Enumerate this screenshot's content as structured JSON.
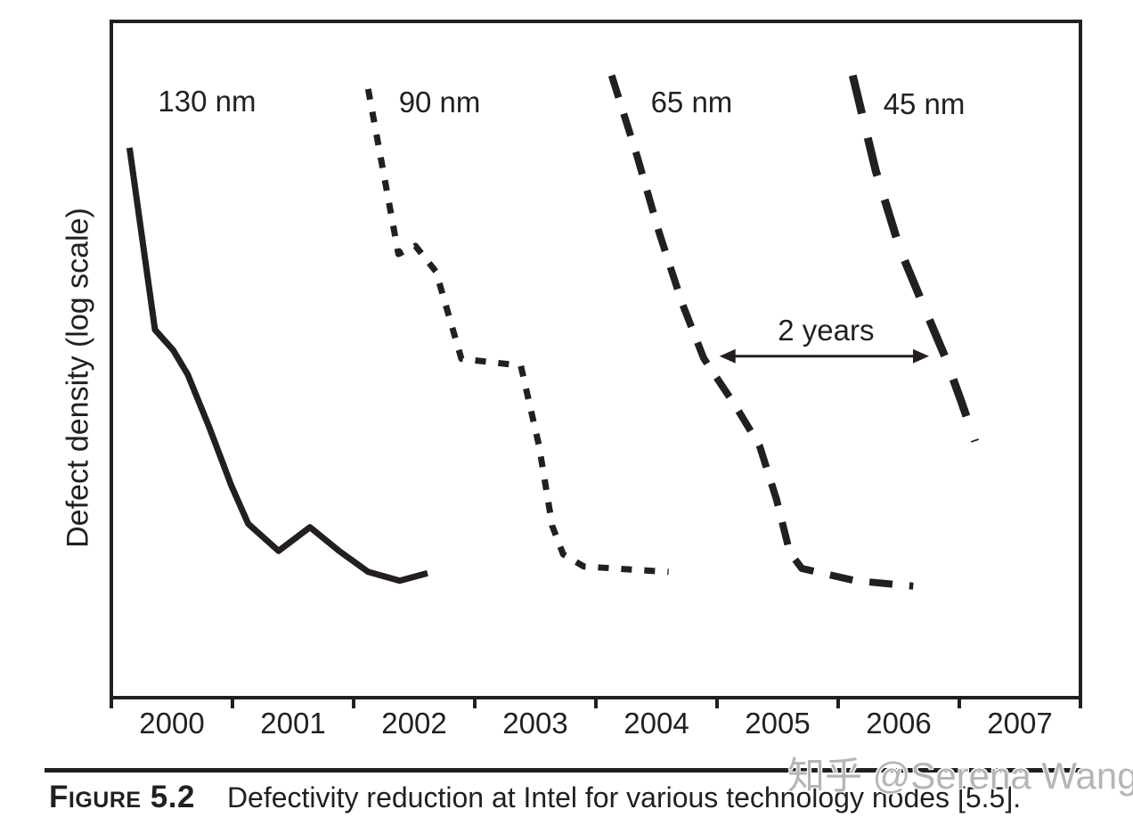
{
  "figure": {
    "caption_label": "Figure 5.2",
    "caption_text": "Defectivity reduction at Intel for various technology nodes [5.5].",
    "watermark": "知乎 @Serena Wang"
  },
  "ink_color": "#231f20",
  "watermark_color": "#b5b5b5",
  "chart_data": {
    "type": "line",
    "title": "",
    "xlabel": "",
    "ylabel": "Defect density (log scale)",
    "x_range": [
      1999.5,
      2007.5
    ],
    "x_tick_labels": [
      "2000",
      "2001",
      "2002",
      "2003",
      "2004",
      "2005",
      "2006",
      "2007"
    ],
    "y_axis_note": "log scale, unlabeled; 'level' = fraction of plot height above the x-axis",
    "grid": false,
    "legend": "inline labels next to each curve",
    "series": [
      {
        "name": "130 nm",
        "line_style": "solid",
        "line_width": 7,
        "label_pos": [
          2000.29,
          0.881
        ],
        "points": [
          [
            1999.65,
            0.813
          ],
          [
            1999.86,
            0.544
          ],
          [
            2000.01,
            0.514
          ],
          [
            2000.13,
            0.478
          ],
          [
            2000.31,
            0.399
          ],
          [
            2000.49,
            0.314
          ],
          [
            2000.63,
            0.257
          ],
          [
            2000.88,
            0.217
          ],
          [
            2001.14,
            0.252
          ],
          [
            2001.38,
            0.217
          ],
          [
            2001.62,
            0.186
          ],
          [
            2001.88,
            0.173
          ],
          [
            2002.11,
            0.184
          ]
        ]
      },
      {
        "name": "90 nm",
        "line_style": "dotted",
        "line_width": 7,
        "label_pos": [
          2002.21,
          0.88
        ],
        "points": [
          [
            2001.62,
            0.9
          ],
          [
            2001.87,
            0.656
          ],
          [
            2002.01,
            0.668
          ],
          [
            2002.18,
            0.63
          ],
          [
            2002.39,
            0.501
          ],
          [
            2002.88,
            0.491
          ],
          [
            2003.03,
            0.373
          ],
          [
            2003.14,
            0.254
          ],
          [
            2003.23,
            0.212
          ],
          [
            2003.4,
            0.194
          ],
          [
            2004.1,
            0.186
          ]
        ]
      },
      {
        "name": "65 nm",
        "line_style": "dashed",
        "line_width": 8,
        "label_pos": [
          2004.29,
          0.88
        ],
        "points": [
          [
            2003.63,
            0.92
          ],
          [
            2003.84,
            0.801
          ],
          [
            2004.02,
            0.689
          ],
          [
            2004.21,
            0.584
          ],
          [
            2004.39,
            0.502
          ],
          [
            2004.65,
            0.432
          ],
          [
            2004.85,
            0.373
          ],
          [
            2004.99,
            0.294
          ],
          [
            2005.1,
            0.215
          ],
          [
            2005.2,
            0.191
          ],
          [
            2005.64,
            0.173
          ],
          [
            2006.12,
            0.165
          ]
        ]
      },
      {
        "name": "45 nm",
        "line_style": "long-dash",
        "line_width": 9,
        "label_pos": [
          2006.21,
          0.877
        ],
        "points": [
          [
            2005.62,
            0.92
          ],
          [
            2005.81,
            0.779
          ],
          [
            2006.01,
            0.663
          ],
          [
            2006.21,
            0.577
          ],
          [
            2006.38,
            0.505
          ],
          [
            2006.51,
            0.441
          ],
          [
            2006.63,
            0.379
          ]
        ]
      }
    ],
    "annotation": {
      "text": "2 years",
      "arrow_from_year": 2004.52,
      "arrow_to_year": 2006.25,
      "arrow_level": 0.505
    }
  }
}
